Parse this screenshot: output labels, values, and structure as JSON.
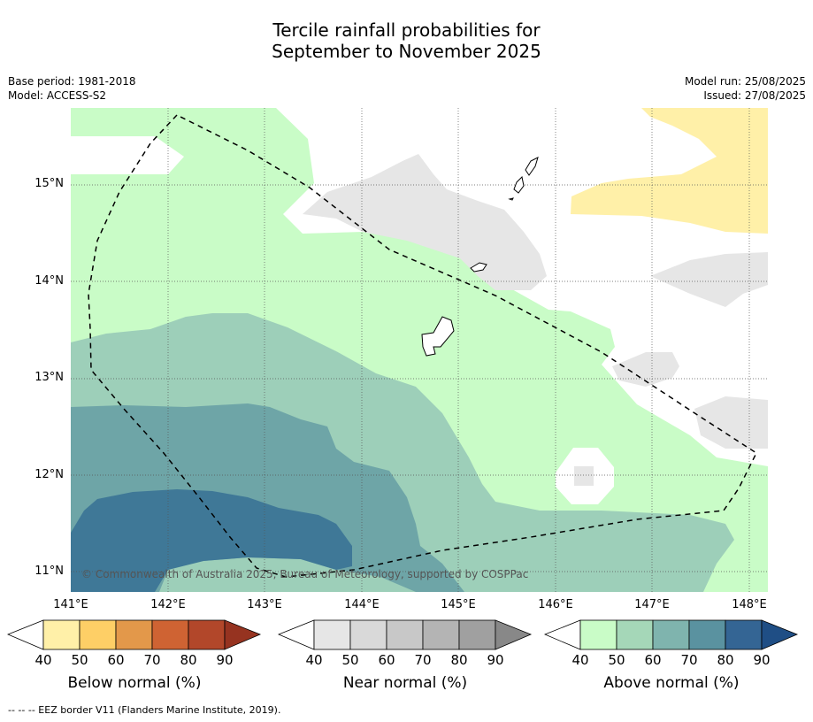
{
  "title_line1": "Tercile rainfall probabilities for",
  "title_line2": "September to November 2025",
  "base_period": "Base period: 1981-2018",
  "model": "Model: ACCESS-S2",
  "model_run": "Model run: 25/08/2025",
  "issued": "Issued: 27/08/2025",
  "copyright": "© Commonwealth of Australia 2025, Bureau of Meteorology, supported by COSPPac",
  "lat_labels": [
    "15°N",
    "14°N",
    "13°N",
    "12°N",
    "11°N"
  ],
  "lon_labels": [
    "141°E",
    "142°E",
    "143°E",
    "144°E",
    "145°E",
    "146°E",
    "147°E",
    "148°E"
  ],
  "colorbars": [
    {
      "label": "Below normal (%)",
      "ticks": [
        "40",
        "50",
        "60",
        "70",
        "80",
        "90"
      ],
      "colors": [
        "#fff0a8",
        "#fecf66",
        "#e3984a",
        "#cf6333",
        "#b2472a",
        "#963320"
      ]
    },
    {
      "label": "Near normal (%)",
      "ticks": [
        "40",
        "50",
        "60",
        "70",
        "80",
        "90"
      ],
      "colors": [
        "#e6e6e6",
        "#d9d9d9",
        "#c8c8c8",
        "#b4b4b4",
        "#a0a0a0",
        "#888888"
      ]
    },
    {
      "label": "Above normal (%)",
      "ticks": [
        "40",
        "50",
        "60",
        "70",
        "80",
        "90"
      ],
      "colors": [
        "#c9fcc7",
        "#a5d7b8",
        "#7fb4ae",
        "#5a92a0",
        "#346594",
        "#1f4e85"
      ]
    }
  ],
  "footnote": "--  --  -- EEZ border V11 (Flanders Marine Institute, 2019)."
}
